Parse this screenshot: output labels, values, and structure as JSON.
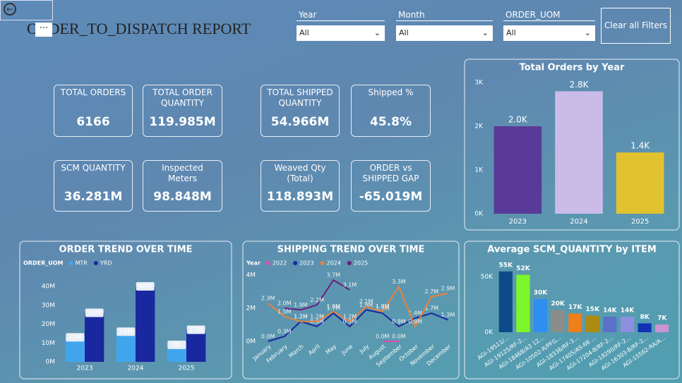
{
  "header": {
    "title": "ORDER_TO_DISPATCH REPORT"
  },
  "filters": [
    {
      "label": "Year",
      "value": "All"
    },
    {
      "label": "Month",
      "value": "All"
    },
    {
      "label": "ORDER_UOM",
      "value": "All"
    }
  ],
  "clear_button": "Clear all Filters",
  "kpis": [
    {
      "label": "TOTAL ORDERS",
      "value": "6166"
    },
    {
      "label": "TOTAL ORDER QUANTITY",
      "value": "119.985M"
    },
    {
      "label": "TOTAL SHIPPED QUANTITY",
      "value": "54.966M"
    },
    {
      "label": "Shipped %",
      "value": "45.8%"
    },
    {
      "label": "SCM QUANTITY",
      "value": "36.281M"
    },
    {
      "label": "Inspected Meters",
      "value": "98.848M"
    },
    {
      "label": "Weaved Qty (Total)",
      "value": "118.893M"
    },
    {
      "label": "ORDER vs SHIPPED GAP",
      "value": "-65.019M"
    }
  ],
  "chart_data": [
    {
      "type": "bar",
      "title": "Total Orders by Year",
      "categories": [
        "2023",
        "2024",
        "2025"
      ],
      "values": [
        2.0,
        2.8,
        1.4
      ],
      "value_labels": [
        "2.0K",
        "2.8K",
        "1.4K"
      ],
      "colors": [
        "#5a3a98",
        "#cbbbe8",
        "#e2c22e"
      ],
      "ylim": [
        0,
        3
      ],
      "yticks": [
        {
          "value": 0,
          "label": "0K"
        },
        {
          "value": 1,
          "label": "1K"
        },
        {
          "value": 2,
          "label": "2K"
        },
        {
          "value": 3,
          "label": "3K"
        }
      ]
    },
    {
      "type": "grouped-bar",
      "title": "ORDER TREND OVER TIME",
      "legend_title": "ORDER_UOM",
      "categories": [
        "2023",
        "2024",
        "2025"
      ],
      "series": [
        {
          "name": "MTR",
          "color": "#41a5ee",
          "values": [
            13,
            16,
            9
          ],
          "value_labels": [
            "13M",
            "16M",
            "9M"
          ]
        },
        {
          "name": "YRD",
          "color": "#1a28a0",
          "values": [
            26,
            40,
            17
          ],
          "value_labels": [
            "26M",
            "40M",
            "17M"
          ]
        }
      ],
      "ylim": [
        0,
        40
      ],
      "yticks": [
        {
          "value": 0,
          "label": "0M"
        },
        {
          "value": 10,
          "label": "10M"
        },
        {
          "value": 20,
          "label": "20M"
        },
        {
          "value": 30,
          "label": "30M"
        },
        {
          "value": 40,
          "label": "40M"
        }
      ]
    },
    {
      "type": "line",
      "title": "SHIPPING TREND OVER TIME",
      "legend_title": "Year",
      "categories": [
        "January",
        "February",
        "March",
        "April",
        "May",
        "June",
        "July",
        "August",
        "September",
        "October",
        "November",
        "December"
      ],
      "series": [
        {
          "name": "2022",
          "color": "#e24bb0",
          "values": [
            null,
            null,
            null,
            null,
            null,
            null,
            null,
            0.0,
            0.0,
            null,
            null,
            null
          ],
          "value_labels": [
            null,
            null,
            null,
            null,
            null,
            null,
            null,
            "0.0M",
            "0.0M",
            null,
            null,
            null
          ]
        },
        {
          "name": "2023",
          "color": "#1a28a0",
          "values": [
            0.0,
            0.3,
            1.2,
            0.9,
            1.7,
            0.9,
            1.9,
            1.7,
            0.9,
            1.4,
            1.7,
            1.3
          ],
          "value_labels": [
            "0.0M",
            "0.3M",
            "1.2M",
            "0.9M",
            "1.7M",
            "0.9M",
            "1.9M",
            "1.7M",
            "0.9M",
            "1.4M",
            "1.7M",
            "1.3M"
          ]
        },
        {
          "name": "2024",
          "color": "#e8823a",
          "values": [
            2.3,
            1.5,
            1.2,
            1.2,
            1.8,
            1.2,
            2.1,
            1.8,
            3.3,
            0.9,
            2.7,
            2.9
          ],
          "value_labels": [
            "2.3M",
            "1.5M",
            "1.2M",
            "1.2M",
            "1.8M",
            "1.2M",
            "2.1M",
            "1.8M",
            "3.3M",
            "0.9M",
            "2.7M",
            "2.9M"
          ]
        },
        {
          "name": "2025",
          "color": "#6a1f7c",
          "values": [
            null,
            2.0,
            1.9,
            2.2,
            3.7,
            3.1,
            null,
            null,
            null,
            null,
            null,
            null
          ],
          "value_labels": [
            null,
            "2.0M",
            "1.9M",
            "2.2M",
            "3.7M",
            "3.1M",
            null,
            null,
            null,
            null,
            null,
            null
          ]
        }
      ],
      "ylim": [
        0,
        4
      ],
      "yticks": [
        {
          "value": 0,
          "label": "0M"
        },
        {
          "value": 2,
          "label": "2M"
        },
        {
          "value": 4,
          "label": "4M"
        }
      ]
    },
    {
      "type": "bar",
      "title": "Average SCM_QUANTITY by ITEM",
      "categories": [
        "AGI-19511/...",
        "AGI-19125/RF-2...",
        "AGI-18468/A3 12...",
        "AGI-10502-R/PFG...",
        "AGI-18336/RF-3...",
        "AGI-17405/AS-66 ...",
        "AGI-17204-B/RF-2...",
        "AGI-18290/RF-2...",
        "AGI-16303-B/RF-2...",
        "AGI-15562-RA/A..."
      ],
      "values": [
        55,
        52,
        30,
        20,
        17,
        15,
        14,
        14,
        8,
        7
      ],
      "value_labels": [
        "55K",
        "52K",
        "30K",
        "20K",
        "17K",
        "15K",
        "14K",
        "14K",
        "8K",
        "7K"
      ],
      "colors": [
        "#0d4a8a",
        "#7cf52a",
        "#2f8ff0",
        "#8c8c8c",
        "#f07e1a",
        "#ad8a12",
        "#5b70c8",
        "#8f8fe0",
        "#1232b5",
        "#c896d2"
      ],
      "ylim": [
        0,
        60
      ],
      "yticks": [
        {
          "value": 0,
          "label": "0K"
        },
        {
          "value": 50,
          "label": "50K"
        }
      ]
    }
  ]
}
